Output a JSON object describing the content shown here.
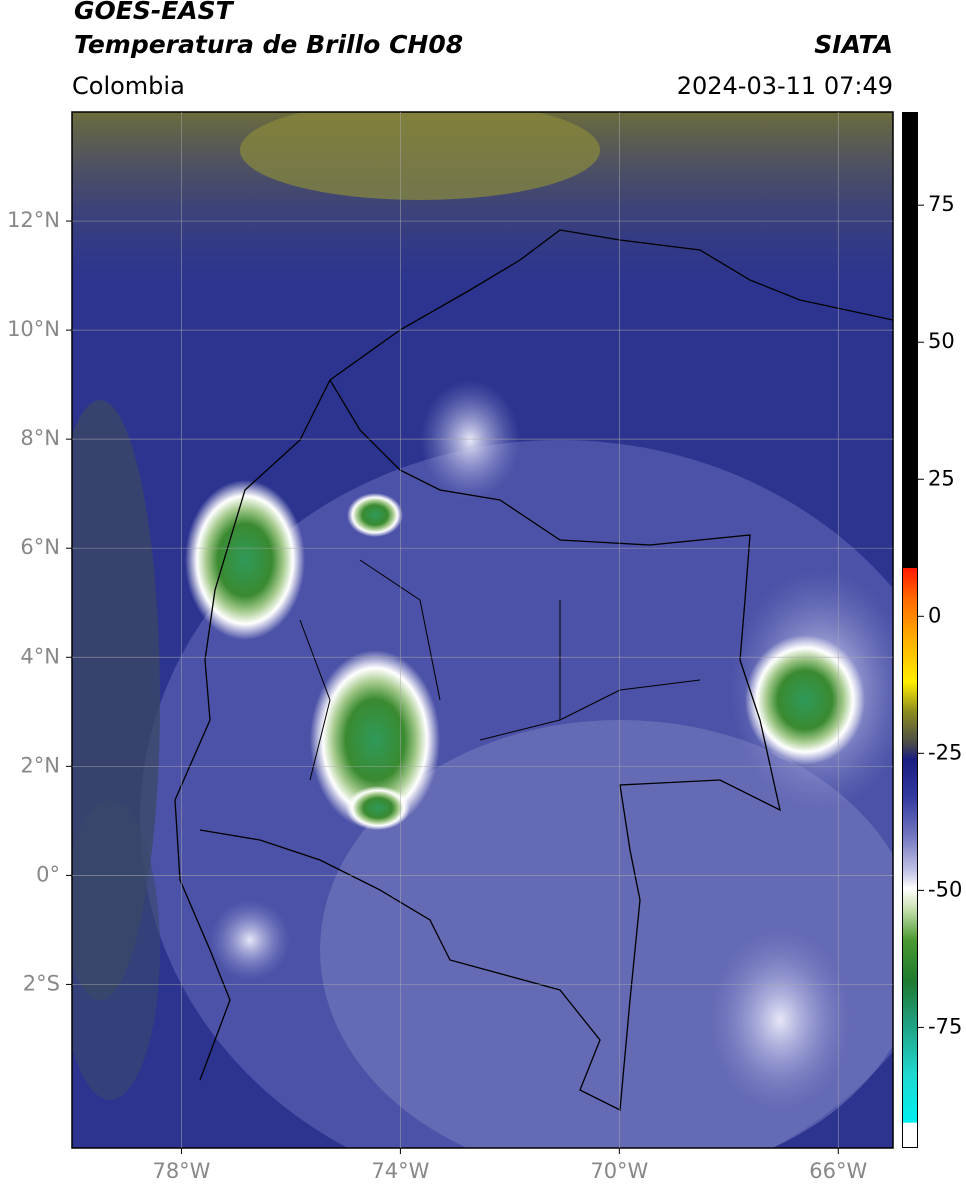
{
  "header": {
    "satellite": "GOES-EAST",
    "product": "Temperatura de Brillo CH08",
    "source": "SIATA",
    "region": "Colombia",
    "datetime": "2024-03-11 07:49"
  },
  "map": {
    "xlim": [
      -80,
      -65
    ],
    "ylim": [
      -5,
      14
    ],
    "grid": true,
    "xticks": [
      {
        "value": -78,
        "label": "78°W"
      },
      {
        "value": -74,
        "label": "74°W"
      },
      {
        "value": -70,
        "label": "70°W"
      },
      {
        "value": -66,
        "label": "66°W"
      }
    ],
    "yticks": [
      {
        "value": 12,
        "label": "12°N"
      },
      {
        "value": 10,
        "label": "10°N"
      },
      {
        "value": 8,
        "label": "8°N"
      },
      {
        "value": 6,
        "label": "6°N"
      },
      {
        "value": 4,
        "label": "4°N"
      },
      {
        "value": 2,
        "label": "2°N"
      },
      {
        "value": 0,
        "label": "0°"
      },
      {
        "value": -2,
        "label": "2°S"
      }
    ]
  },
  "colorbar": {
    "lim": [
      -97,
      92
    ],
    "ticks": [
      75,
      50,
      25,
      0,
      -25,
      -50,
      -75
    ]
  }
}
